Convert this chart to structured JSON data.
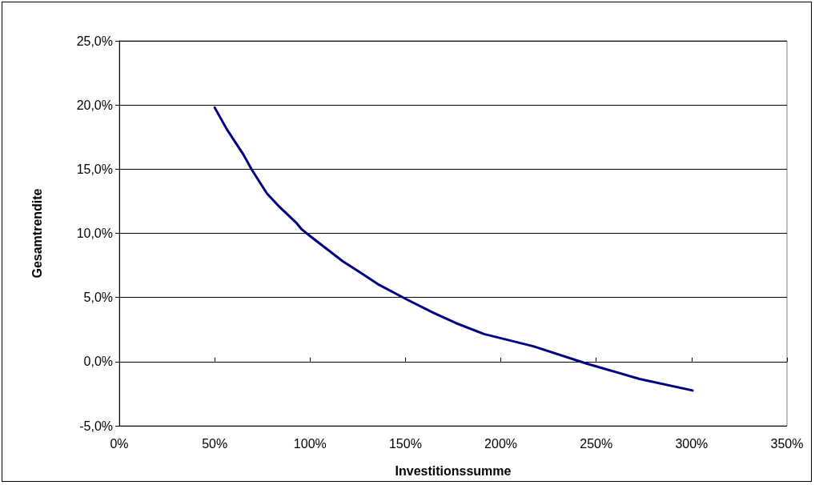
{
  "chart_data": {
    "type": "line",
    "xlabel": "Investitionssumme",
    "ylabel": "Gesamtrendite",
    "x": [
      50,
      56.4,
      64.8,
      69.7,
      77.4,
      83.7,
      92.9,
      95.7,
      99.9,
      108.2,
      117.3,
      125.7,
      135.4,
      150,
      164.7,
      176.5,
      191.2,
      217,
      244.9,
      272.7,
      300.5
    ],
    "series": [
      {
        "color": "#000080",
        "values": [
          19.8,
          18.1,
          16.2,
          14.9,
          13.1,
          12.1,
          10.8,
          10.3,
          9.8,
          8.85,
          7.8,
          7.0,
          6.05,
          4.9,
          3.8,
          3.0,
          2.15,
          1.2,
          -0.15,
          -1.35,
          -2.25
        ]
      }
    ],
    "xlim": [
      0,
      350
    ],
    "xticks": [
      {
        "value": 0,
        "label": "0%"
      },
      {
        "value": 50,
        "label": "50%"
      },
      {
        "value": 100,
        "label": "100%"
      },
      {
        "value": 150,
        "label": "150%"
      },
      {
        "value": 200,
        "label": "200%"
      },
      {
        "value": 250,
        "label": "250%"
      },
      {
        "value": 300,
        "label": "300%"
      },
      {
        "value": 350,
        "label": "350%"
      }
    ],
    "ylim": [
      -5,
      25
    ],
    "yticks": [
      {
        "value": -5,
        "label": "-5,0%"
      },
      {
        "value": 0,
        "label": "0,0%"
      },
      {
        "value": 5,
        "label": "5,0%"
      },
      {
        "value": 10,
        "label": "10,0%"
      },
      {
        "value": 15,
        "label": "15,0%"
      },
      {
        "value": 20,
        "label": "20,0%"
      },
      {
        "value": 25,
        "label": "25,0%"
      }
    ],
    "grid": "y",
    "marker": "none",
    "line_style": "solid"
  }
}
